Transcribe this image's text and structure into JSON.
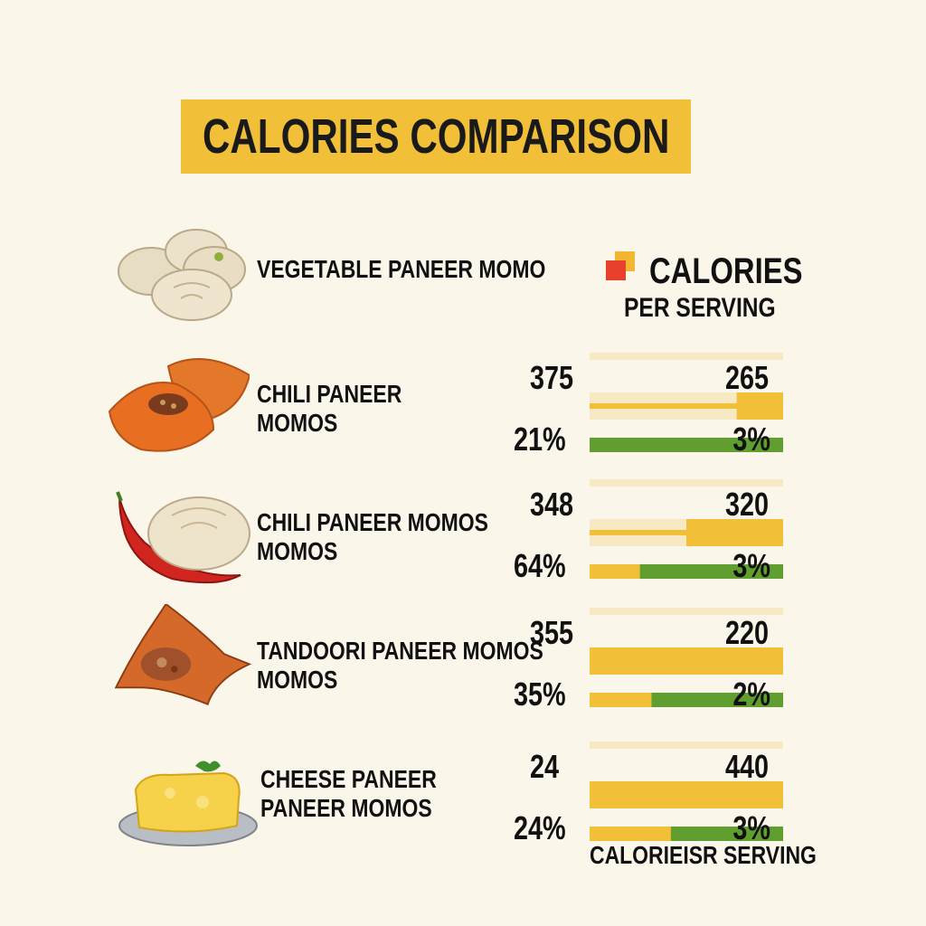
{
  "title": "CALORIES COMPARISON",
  "legend": {
    "title": "CALORIES",
    "subtitle": "PER SERVING",
    "swatch_colors": [
      "#e8402a",
      "#f2b632"
    ]
  },
  "footer": "CALORIEISR SERVING",
  "colors": {
    "background": "#fbf6ea",
    "banner": "#f2c038",
    "bar_yellow": "#f2c038",
    "bar_pale": "#f6e9c4",
    "bar_green": "#5f9e2f"
  },
  "items": [
    {
      "name_lines": [
        "VEGETABLE PANEER MOMO"
      ],
      "icon": "steamed-momo-icon"
    },
    {
      "name_lines": [
        "CHILI PANEER",
        "MOMOS"
      ],
      "icon": "fried-momo-icon"
    },
    {
      "name_lines": [
        "CHILI PANEER MOMOS",
        "MOMOS"
      ],
      "icon": "chili-momo-icon"
    },
    {
      "name_lines": [
        "TANDOORI PANEER MOMOS",
        "MOMOS"
      ],
      "icon": "tandoori-momo-icon"
    },
    {
      "name_lines": [
        "CHEESE PANEER",
        "PANEER MOMOS"
      ],
      "icon": "cheese-momo-icon"
    }
  ],
  "chart_data": {
    "type": "bar",
    "title": "CALORIES COMPARISON",
    "legend": "CALORIES PER SERVING",
    "rows": [
      {
        "label": "CHILI PANEER MOMOS",
        "left_value": "375",
        "right_value": "265",
        "left_percent": "21%",
        "right_percent": "3%",
        "yellow_fraction": 0.24,
        "green_fraction": 1.0
      },
      {
        "label": "CHILI PANEER MOMOS MOMOS",
        "left_value": "348",
        "right_value": "320",
        "left_percent": "64%",
        "right_percent": "3%",
        "yellow_fraction": 0.5,
        "green_fraction": 0.74
      },
      {
        "label": "TANDOORI PANEER MOMOS MOMOS",
        "left_value": "355",
        "right_value": "220",
        "left_percent": "35%",
        "right_percent": "2%",
        "yellow_fraction": 1.0,
        "green_fraction": 0.68
      },
      {
        "label": "CHEESE PANEER PANEER MOMOS",
        "left_value": "24",
        "right_value": "440",
        "left_percent": "24%",
        "right_percent": "3%",
        "yellow_fraction": 1.0,
        "green_fraction": 0.58
      }
    ]
  }
}
